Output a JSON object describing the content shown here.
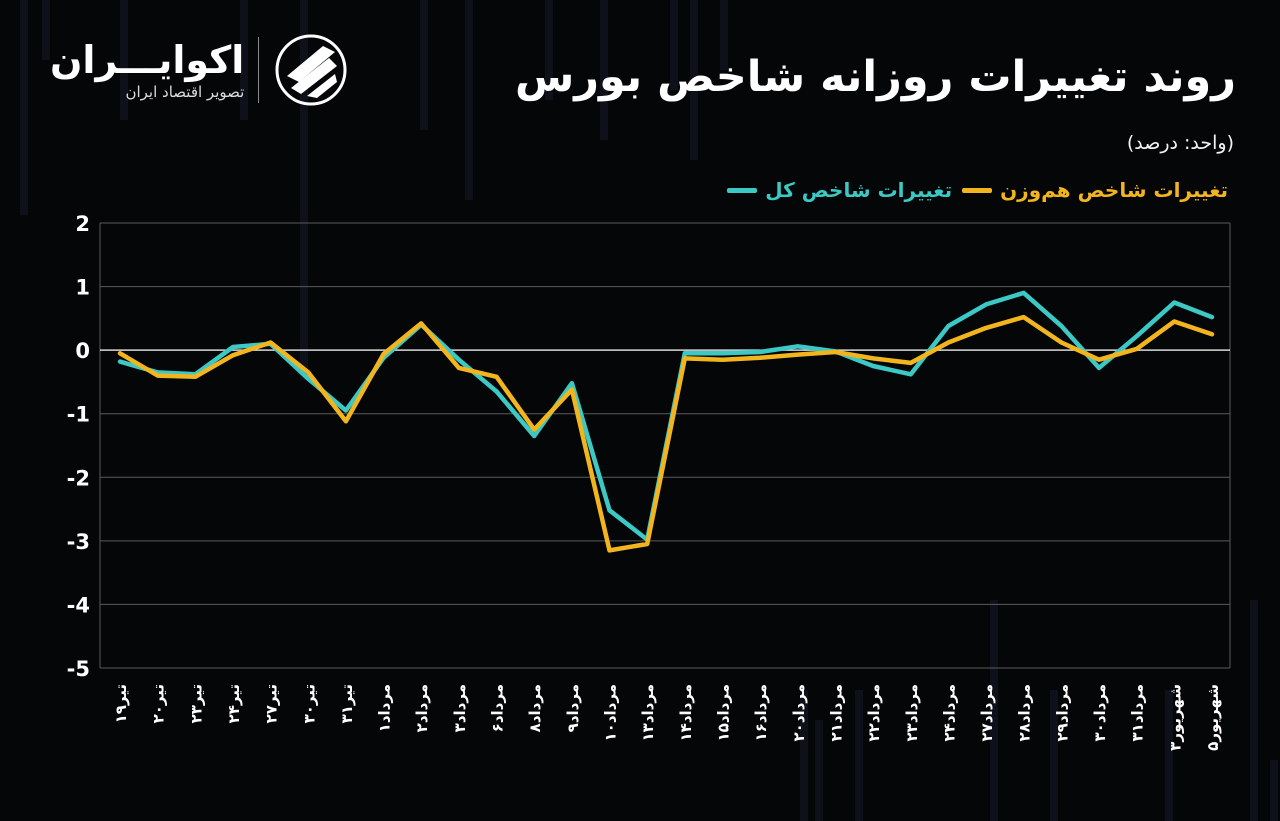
{
  "header": {
    "title": "روند تغییرات روزانه شاخص بورس",
    "unit": "(واحد: درصد)"
  },
  "brand": {
    "name": "اکوایـــران",
    "tagline": "تصویر اقتصاد ایران"
  },
  "colors": {
    "background": "#050608",
    "total_index": "#3cc8c4",
    "equal_weight_index": "#f2b51e",
    "grid": "#5a5a5a",
    "zero_line": "#d9d9d9"
  },
  "chart_data": {
    "type": "line",
    "categories": [
      "تیر۱۹",
      "تیر۲۰",
      "تیر۲۳",
      "تیر۲۴",
      "تیر۲۷",
      "تیر۳۰",
      "تیر۳۱",
      "مرداد۱",
      "مرداد۲",
      "مرداد۳",
      "مرداد۶",
      "مرداد۸",
      "مرداد۹",
      "مرداد۱۰",
      "مرداد۱۳",
      "مرداد۱۴",
      "مرداد۱۵",
      "مرداد۱۶",
      "مرداد۲۰",
      "مرداد۲۱",
      "مرداد۲۲",
      "مرداد۲۳",
      "مرداد۲۴",
      "مرداد۲۷",
      "مرداد۲۸",
      "مرداد۲۹",
      "مرداد۳۰",
      "مرداد۳۱",
      "شهریور۳",
      "شهریور۵"
    ],
    "series": [
      {
        "name": "تغییرات شاخص کل",
        "color": "#3cc8c4",
        "values": [
          -0.18,
          -0.35,
          -0.38,
          0.05,
          0.1,
          -0.45,
          -0.95,
          -0.12,
          0.4,
          -0.15,
          -0.65,
          -1.35,
          -0.52,
          -2.52,
          -2.98,
          -0.05,
          -0.05,
          -0.03,
          0.06,
          -0.02,
          -0.25,
          -0.38,
          0.38,
          0.72,
          0.9,
          0.38,
          -0.28,
          0.22,
          0.75,
          0.52
        ]
      },
      {
        "name": "تغییرات شاخص هم‌وزن",
        "color": "#f2b51e",
        "values": [
          -0.05,
          -0.4,
          -0.42,
          -0.08,
          0.12,
          -0.35,
          -1.12,
          -0.06,
          0.42,
          -0.28,
          -0.42,
          -1.25,
          -0.62,
          -3.15,
          -3.05,
          -0.13,
          -0.15,
          -0.12,
          -0.07,
          -0.03,
          -0.13,
          -0.2,
          0.12,
          0.35,
          0.52,
          0.12,
          -0.15,
          0.02,
          0.45,
          0.25
        ]
      }
    ],
    "ylim": [
      -5,
      2
    ],
    "yticks": [
      {
        "value": 2,
        "label": "2"
      },
      {
        "value": 1,
        "label": "1"
      },
      {
        "value": 0,
        "label": "0"
      },
      {
        "value": -1,
        "label": "-1"
      },
      {
        "value": -2,
        "label": "-2"
      },
      {
        "value": -3,
        "label": "-3"
      },
      {
        "value": -4,
        "label": "-4"
      },
      {
        "value": -5,
        "label": "-5"
      }
    ],
    "grid": true,
    "legend_position": "top-right"
  }
}
